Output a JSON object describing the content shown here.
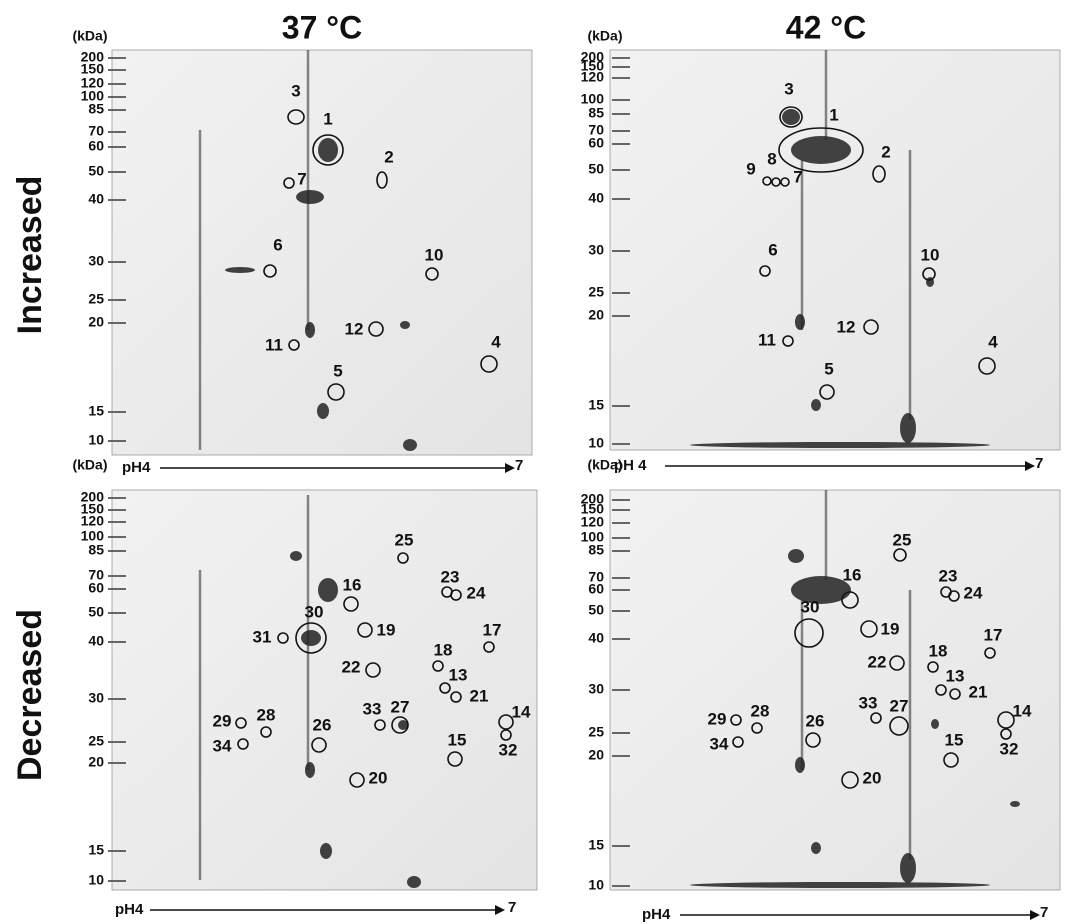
{
  "columns": [
    "37 °C",
    "42 °C"
  ],
  "rows": [
    "Increased",
    "Decreased"
  ],
  "panels": [
    {
      "unit": "(kDa)",
      "mw_ticks": [
        "200",
        "150",
        "120",
        "100",
        "85",
        "70",
        "60",
        "50",
        "40",
        "30",
        "25",
        "20",
        "15",
        "10"
      ],
      "ph_start": "pH4",
      "ph_end": "7",
      "spots": [
        "3",
        "1",
        "2",
        "7",
        "6",
        "10",
        "12",
        "11",
        "4",
        "5"
      ]
    },
    {
      "unit": "(kDa)",
      "mw_ticks": [
        "200",
        "150",
        "120",
        "100",
        "85",
        "70",
        "60",
        "50",
        "40",
        "30",
        "25",
        "20",
        "15",
        "10"
      ],
      "ph_start": "pH 4",
      "ph_end": "7",
      "spots": [
        "3",
        "1",
        "2",
        "9",
        "8",
        "7",
        "6",
        "10",
        "12",
        "11",
        "4",
        "5"
      ]
    },
    {
      "unit": "(kDa)",
      "mw_ticks": [
        "200",
        "150",
        "120",
        "100",
        "85",
        "70",
        "60",
        "50",
        "40",
        "30",
        "25",
        "20",
        "15",
        "10"
      ],
      "ph_start": "pH4",
      "ph_end": "7",
      "spots": [
        "25",
        "23",
        "24",
        "16",
        "30",
        "31",
        "19",
        "17",
        "18",
        "22",
        "13",
        "21",
        "33",
        "27",
        "14",
        "29",
        "28",
        "26",
        "34",
        "32",
        "15",
        "20"
      ]
    },
    {
      "unit": "(kDa)",
      "mw_ticks": [
        "200",
        "150",
        "120",
        "100",
        "85",
        "70",
        "60",
        "50",
        "40",
        "30",
        "25",
        "20",
        "15",
        "10"
      ],
      "ph_start": "pH4",
      "ph_end": "7",
      "spots": [
        "25",
        "23",
        "24",
        "16",
        "30",
        "19",
        "17",
        "18",
        "22",
        "13",
        "21",
        "33",
        "27",
        "14",
        "29",
        "28",
        "26",
        "34",
        "32",
        "15",
        "20"
      ]
    }
  ]
}
